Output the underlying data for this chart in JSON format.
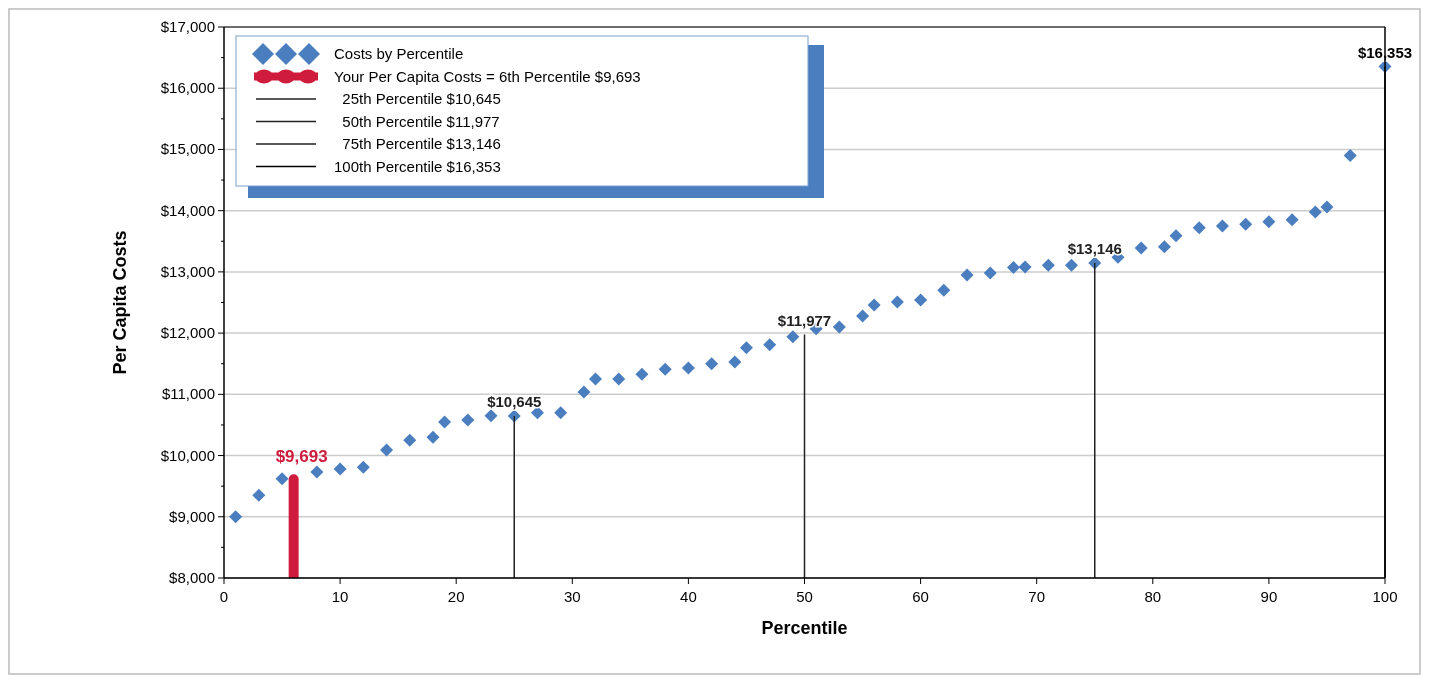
{
  "chart_data": {
    "type": "scatter",
    "xlabel": "Percentile",
    "ylabel": "Per Capita Costs",
    "xlim": [
      0,
      100
    ],
    "xticks": [
      0,
      10,
      20,
      30,
      40,
      50,
      60,
      70,
      80,
      90,
      100
    ],
    "ylim": [
      8000,
      17000
    ],
    "yticks": [
      {
        "value": 8000,
        "label": "$8,000"
      },
      {
        "value": 9000,
        "label": "$9,000"
      },
      {
        "value": 10000,
        "label": "$10,000"
      },
      {
        "value": 11000,
        "label": "$11,000"
      },
      {
        "value": 12000,
        "label": "$12,000"
      },
      {
        "value": 13000,
        "label": "$13,000"
      },
      {
        "value": 14000,
        "label": "$14,000"
      },
      {
        "value": 15000,
        "label": "$15,000"
      },
      {
        "value": 16000,
        "label": "$16,000"
      },
      {
        "value": 17000,
        "label": "$17,000"
      }
    ],
    "grid": "y",
    "legend": "top left",
    "marker": "diamond",
    "series": [
      {
        "name": "Costs by Percentile",
        "color": "#4a7ebf",
        "x": [
          1,
          3,
          5,
          8,
          10,
          12,
          14,
          16,
          18,
          19,
          21,
          23,
          25,
          27,
          29,
          31,
          32,
          34,
          36,
          38,
          40,
          42,
          44,
          45,
          47,
          49,
          51,
          53,
          55,
          56,
          58,
          60,
          62,
          64,
          66,
          68,
          69,
          71,
          73,
          75,
          77,
          79,
          81,
          82,
          84,
          86,
          88,
          90,
          92,
          94,
          95,
          97,
          100
        ],
        "values": [
          9000,
          9350,
          9620,
          9730,
          9780,
          9810,
          10090,
          10250,
          10300,
          10550,
          10580,
          10650,
          10645,
          10700,
          10700,
          11040,
          11250,
          11250,
          11330,
          11410,
          11430,
          11500,
          11530,
          11760,
          11810,
          11940,
          12070,
          12100,
          12280,
          12460,
          12510,
          12540,
          12700,
          12950,
          12980,
          13070,
          13080,
          13110,
          13110,
          13146,
          13240,
          13390,
          13410,
          13590,
          13720,
          13750,
          13780,
          13820,
          13850,
          13980,
          14060,
          14900,
          16353
        ]
      },
      {
        "name": "Your Per Capita Costs = 6th Percentile $9,693",
        "type": "bar",
        "marker": "circle",
        "color": "#d01c3c",
        "x": [
          6
        ],
        "values": [
          9693
        ],
        "value_labels": [
          "$9,693"
        ]
      },
      {
        "name": "  25th Percentile $10,645",
        "type": "bar",
        "color": "#222222",
        "x": [
          25
        ],
        "values": [
          10645
        ],
        "value_labels": [
          "$10,645"
        ]
      },
      {
        "name": "  50th Percentile $11,977",
        "type": "bar",
        "color": "#222222",
        "x": [
          50
        ],
        "values": [
          11977
        ],
        "value_labels": [
          "$11,977"
        ]
      },
      {
        "name": "  75th Percentile $13,146",
        "type": "bar",
        "color": "#222222",
        "x": [
          75
        ],
        "values": [
          13146
        ],
        "value_labels": [
          "$13,146"
        ]
      },
      {
        "name": "100th Percentile $16,353",
        "type": "bar",
        "color": "#000000",
        "x": [
          100
        ],
        "values": [
          16353
        ],
        "value_labels": [
          "$16,353"
        ]
      }
    ]
  }
}
